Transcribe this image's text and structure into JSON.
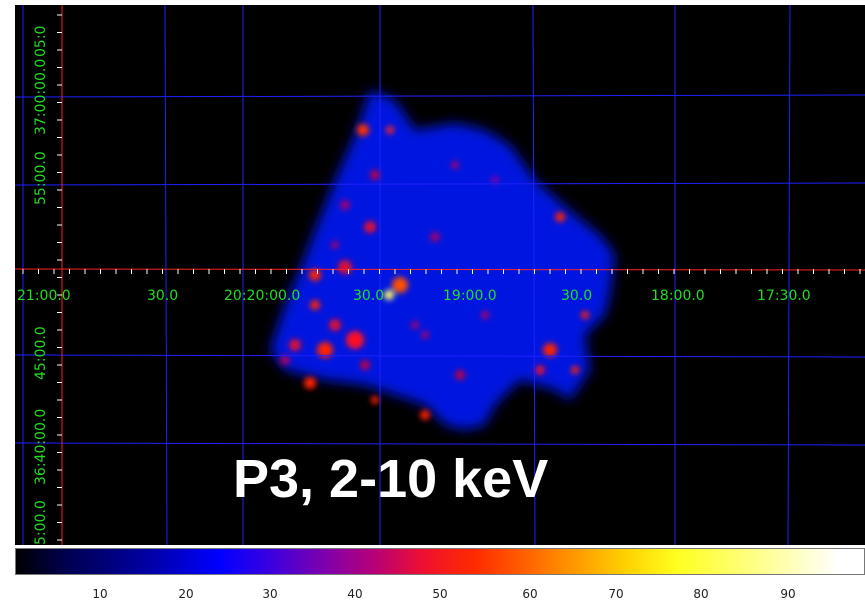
{
  "image": {
    "caption": "P3, 2-10 keV",
    "grid_color": "#2020ff",
    "crosshair_color": "#ff2020",
    "label_color": "#22dd22"
  },
  "ra_labels": [
    "21:00.0",
    "30.0",
    "20:20:00.0",
    "30.0",
    "19:00.0",
    "30.0",
    "18:00.0",
    "17:30.0"
  ],
  "dec_labels": [
    "5:00.0",
    "36:40:00.0",
    "45:00.0",
    "55:00.0",
    "37:00:00.0",
    "05:0"
  ],
  "colorbar": {
    "ticks": [
      "10",
      "20",
      "30",
      "40",
      "50",
      "60",
      "70",
      "80",
      "90"
    ]
  }
}
